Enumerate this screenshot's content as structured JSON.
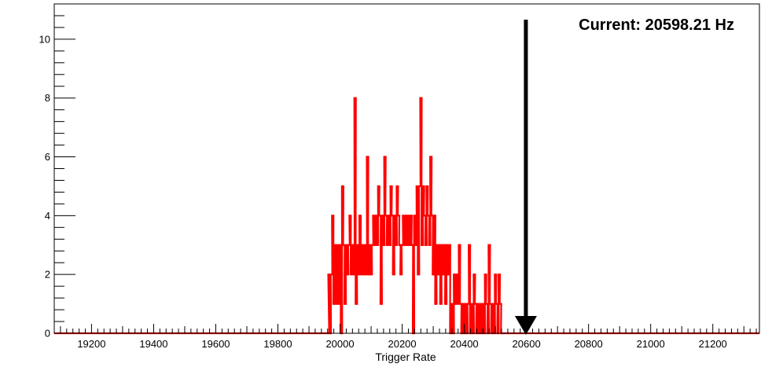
{
  "chart_data": {
    "type": "histogram",
    "title": "",
    "xlabel": "Trigger Rate",
    "ylabel": "",
    "xlim": [
      19080,
      21350
    ],
    "ylim": [
      0,
      11.2
    ],
    "x_ticks": [
      19200,
      19400,
      19600,
      19800,
      20000,
      20200,
      20400,
      20600,
      20800,
      21000,
      21200
    ],
    "y_ticks": [
      0,
      2,
      4,
      6,
      8,
      10
    ],
    "x_minor_step": 20,
    "y_minor_step": 0.4,
    "grid": false,
    "legend": "none",
    "line_color": "#ff0000",
    "bin_width": 5,
    "series": [
      {
        "values": [
          [
            19960,
            0
          ],
          [
            19962,
            2
          ],
          [
            19966,
            0
          ],
          [
            19970,
            2
          ],
          [
            19974,
            4
          ],
          [
            19978,
            1
          ],
          [
            19982,
            3
          ],
          [
            19986,
            1
          ],
          [
            19990,
            3
          ],
          [
            19994,
            1
          ],
          [
            19998,
            3
          ],
          [
            20002,
            0
          ],
          [
            20006,
            5
          ],
          [
            20010,
            3
          ],
          [
            20014,
            1
          ],
          [
            20018,
            3
          ],
          [
            20022,
            2
          ],
          [
            20026,
            3
          ],
          [
            20030,
            4
          ],
          [
            20034,
            2
          ],
          [
            20038,
            3
          ],
          [
            20042,
            2
          ],
          [
            20046,
            8
          ],
          [
            20050,
            1
          ],
          [
            20054,
            3
          ],
          [
            20058,
            2
          ],
          [
            20062,
            4
          ],
          [
            20066,
            2
          ],
          [
            20070,
            3
          ],
          [
            20074,
            2
          ],
          [
            20078,
            3
          ],
          [
            20082,
            2
          ],
          [
            20086,
            6
          ],
          [
            20090,
            2
          ],
          [
            20094,
            3
          ],
          [
            20098,
            2
          ],
          [
            20102,
            3
          ],
          [
            20106,
            4
          ],
          [
            20110,
            3
          ],
          [
            20114,
            4
          ],
          [
            20118,
            3
          ],
          [
            20122,
            5
          ],
          [
            20126,
            4
          ],
          [
            20130,
            1
          ],
          [
            20134,
            4
          ],
          [
            20138,
            3
          ],
          [
            20142,
            6
          ],
          [
            20146,
            4
          ],
          [
            20150,
            3
          ],
          [
            20154,
            4
          ],
          [
            20158,
            3
          ],
          [
            20162,
            5
          ],
          [
            20166,
            4
          ],
          [
            20170,
            2
          ],
          [
            20174,
            4
          ],
          [
            20178,
            3
          ],
          [
            20182,
            5
          ],
          [
            20186,
            4
          ],
          [
            20190,
            3
          ],
          [
            20194,
            2
          ],
          [
            20198,
            3
          ],
          [
            20202,
            4
          ],
          [
            20206,
            3
          ],
          [
            20210,
            4
          ],
          [
            20214,
            3
          ],
          [
            20218,
            4
          ],
          [
            20222,
            3
          ],
          [
            20226,
            4
          ],
          [
            20230,
            3
          ],
          [
            20234,
            0
          ],
          [
            20238,
            4
          ],
          [
            20242,
            3
          ],
          [
            20246,
            5
          ],
          [
            20250,
            2
          ],
          [
            20254,
            5
          ],
          [
            20258,
            8
          ],
          [
            20262,
            3
          ],
          [
            20266,
            5
          ],
          [
            20270,
            4
          ],
          [
            20274,
            3
          ],
          [
            20278,
            5
          ],
          [
            20282,
            4
          ],
          [
            20286,
            3
          ],
          [
            20290,
            6
          ],
          [
            20294,
            4
          ],
          [
            20298,
            2
          ],
          [
            20302,
            4
          ],
          [
            20306,
            1
          ],
          [
            20310,
            3
          ],
          [
            20314,
            2
          ],
          [
            20318,
            3
          ],
          [
            20322,
            1
          ],
          [
            20326,
            3
          ],
          [
            20330,
            2
          ],
          [
            20334,
            3
          ],
          [
            20338,
            1
          ],
          [
            20342,
            3
          ],
          [
            20346,
            2
          ],
          [
            20350,
            3
          ],
          [
            20354,
            0
          ],
          [
            20358,
            1
          ],
          [
            20362,
            0
          ],
          [
            20366,
            2
          ],
          [
            20370,
            1
          ],
          [
            20374,
            2
          ],
          [
            20378,
            1
          ],
          [
            20382,
            3
          ],
          [
            20386,
            1
          ],
          [
            20390,
            0
          ],
          [
            20394,
            1
          ],
          [
            20398,
            0
          ],
          [
            20402,
            1
          ],
          [
            20406,
            0
          ],
          [
            20410,
            1
          ],
          [
            20414,
            3
          ],
          [
            20418,
            0
          ],
          [
            20422,
            1
          ],
          [
            20426,
            0
          ],
          [
            20430,
            2
          ],
          [
            20434,
            1
          ],
          [
            20438,
            0
          ],
          [
            20442,
            1
          ],
          [
            20446,
            0
          ],
          [
            20450,
            1
          ],
          [
            20454,
            0
          ],
          [
            20458,
            1
          ],
          [
            20462,
            0
          ],
          [
            20466,
            2
          ],
          [
            20470,
            1
          ],
          [
            20474,
            0
          ],
          [
            20478,
            3
          ],
          [
            20482,
            1
          ],
          [
            20486,
            0
          ],
          [
            20490,
            1
          ],
          [
            20494,
            0
          ],
          [
            20498,
            2
          ],
          [
            20502,
            1
          ],
          [
            20506,
            0
          ],
          [
            20510,
            2
          ],
          [
            20514,
            1
          ],
          [
            20518,
            0
          ],
          [
            20522,
            0
          ]
        ]
      }
    ],
    "marker": {
      "x": 20598.21,
      "label": "Current: 20598.21 Hz",
      "color": "#000000"
    }
  }
}
